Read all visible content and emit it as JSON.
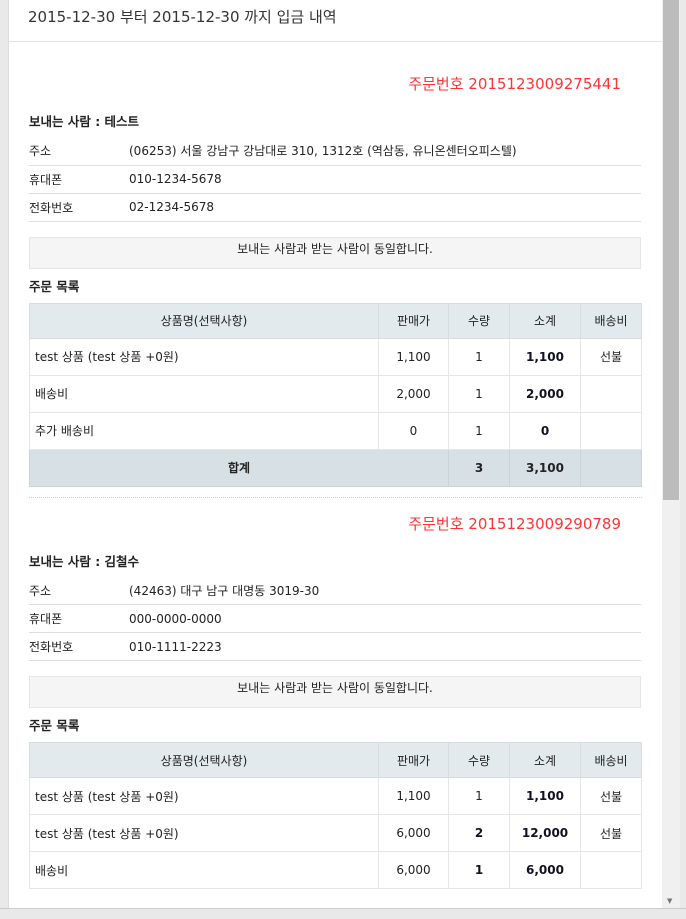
{
  "title": "2015-12-30 부터 2015-12-30 까지 입금 내역",
  "labels": {
    "address": "주소",
    "mobile": "휴대폰",
    "phone": "전화번호",
    "notice": "보내는 사람과 받는 사람이 동일합니다.",
    "list_title": "주문 목록",
    "total": "합계"
  },
  "columns": [
    "상품명(선택사항)",
    "판매가",
    "수량",
    "소계",
    "배송비"
  ],
  "orders": [
    {
      "order_no": "주문번호 2015123009275441",
      "sender": "보내는 사람 : 테스트",
      "address": "(06253) 서울 강남구 강남대로 310, 1312호 (역삼동, 유니온센터오피스텔)",
      "mobile": "010-1234-5678",
      "phone": "02-1234-5678",
      "items": [
        {
          "name": "test 상품 (test 상품 +0원)",
          "price": "1,100",
          "qty": "1",
          "subtotal": "1,100",
          "ship": "선불"
        },
        {
          "name": "배송비",
          "price": "2,000",
          "qty": "1",
          "subtotal": "2,000",
          "ship": ""
        },
        {
          "name": "추가 배송비",
          "price": "0",
          "qty": "1",
          "subtotal": "0",
          "ship": ""
        }
      ],
      "total_qty": "3",
      "total_sum": "3,100"
    },
    {
      "order_no": "주문번호 2015123009290789",
      "sender": "보내는 사람 : 김철수",
      "address": "(42463) 대구 남구 대명동 3019-30",
      "mobile": "000-0000-0000",
      "phone": "010-1111-2223",
      "items": [
        {
          "name": "test 상품 (test 상품 +0원)",
          "price": "1,100",
          "qty": "1",
          "subtotal": "1,100",
          "ship": "선불"
        },
        {
          "name": "test 상품 (test 상품 +0원)",
          "price": "6,000",
          "qty": "2",
          "subtotal": "12,000",
          "ship": "선불"
        },
        {
          "name": "배송비",
          "price": "6,000",
          "qty": "1",
          "subtotal": "6,000",
          "ship": ""
        }
      ]
    }
  ],
  "colors": {
    "order_no": "#ff3333",
    "header_bg": "#e3eaee",
    "total_bg": "#d7e0e4"
  }
}
